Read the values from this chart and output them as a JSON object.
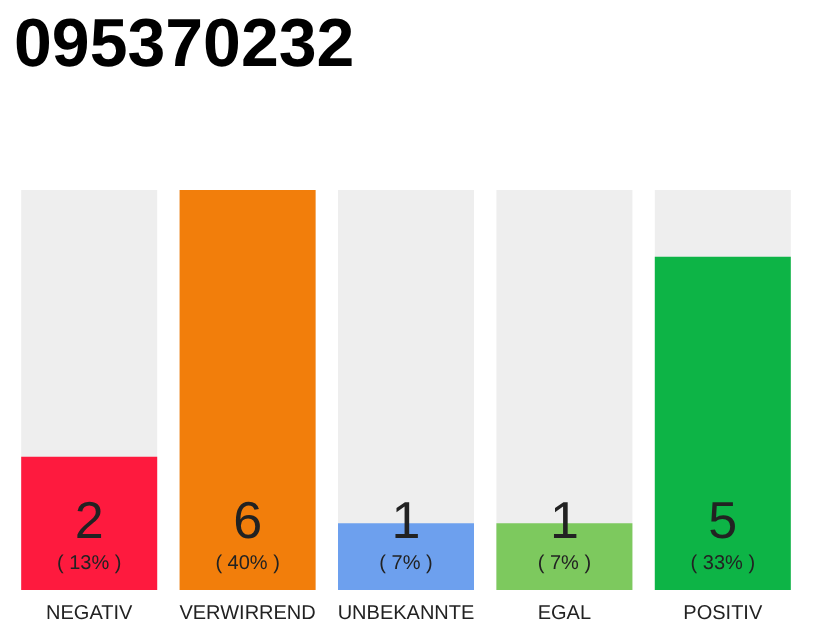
{
  "chart_data": {
    "type": "bar",
    "title": "095370232",
    "categories": [
      "NEGATIV",
      "VERWIRREND",
      "UNBEKANNTE",
      "EGAL",
      "POSITIV"
    ],
    "values": [
      2,
      6,
      1,
      1,
      5
    ],
    "colors": [
      "#fe1a3e",
      "#f27e0b",
      "#6da0ee",
      "#7dc95e",
      "#0db446"
    ],
    "value_labels": [
      "2\n( 13% )",
      "6\n( 40% )",
      "1\n( 7% )",
      "1\n( 7% )",
      "5\n( 33% )"
    ],
    "ylim": [
      0,
      6
    ],
    "tick_labels": "x",
    "grid": false
  }
}
